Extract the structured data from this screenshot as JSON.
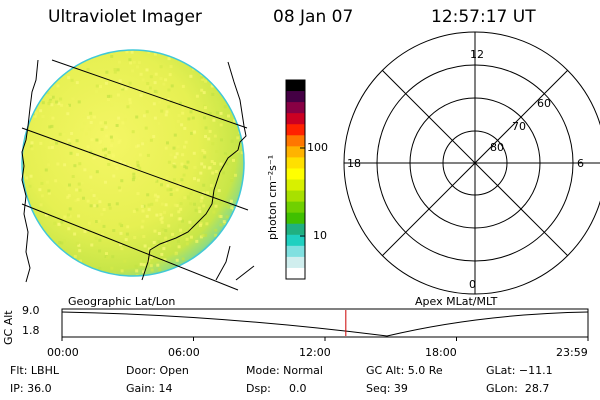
{
  "header": {
    "instrument": "Ultraviolet Imager",
    "date": "08 Jan 07",
    "time": "12:57:17 UT"
  },
  "colorbar": {
    "unit_label": "photon cm⁻²s⁻¹",
    "ticks": [
      "100",
      "10"
    ],
    "scale": "log",
    "colors": [
      "#000000",
      "#440044",
      "#880044",
      "#cc0022",
      "#ff2200",
      "#ff7700",
      "#ffb300",
      "#ffe000",
      "#ffff00",
      "#d8f000",
      "#a8e000",
      "#70d000",
      "#40c000",
      "#20b080",
      "#20d0c0",
      "#80e0e0",
      "#d0eeee",
      "#ffffff"
    ]
  },
  "panels": {
    "left_caption": "Geographic Lat/Lon",
    "right_caption": "Apex MLat/MLT"
  },
  "polar_plot": {
    "mlt_labels": [
      "12",
      "18",
      "6",
      "0"
    ],
    "lat_labels": [
      "60",
      "70",
      "80"
    ]
  },
  "altitude_plot": {
    "ylabel": "GC Alt",
    "yticks": [
      "9.0",
      "1.8"
    ],
    "xticks": [
      "00:00",
      "06:00",
      "12:00",
      "18:00",
      "23:59"
    ],
    "current_time_marker_hours": 12.95,
    "marker_color": "#cc0000"
  },
  "footer": {
    "flt": "Flt: LBHL",
    "ip": "IP: 36.0",
    "door": "Door: Open",
    "gain": "Gain: 14",
    "mode": "Mode: Normal",
    "dsp_label": "Dsp:",
    "dsp_value": "0.0",
    "gcalt": "GC Alt: 5.0 Re",
    "seq": "Seq: 39",
    "glat": "GLat: −11.1",
    "glon": "GLon:  28.7"
  },
  "image_palette": {
    "disk_base": "#e4f050",
    "disk_bright": "#f2f560",
    "disk_edge": "#70d0a0"
  }
}
